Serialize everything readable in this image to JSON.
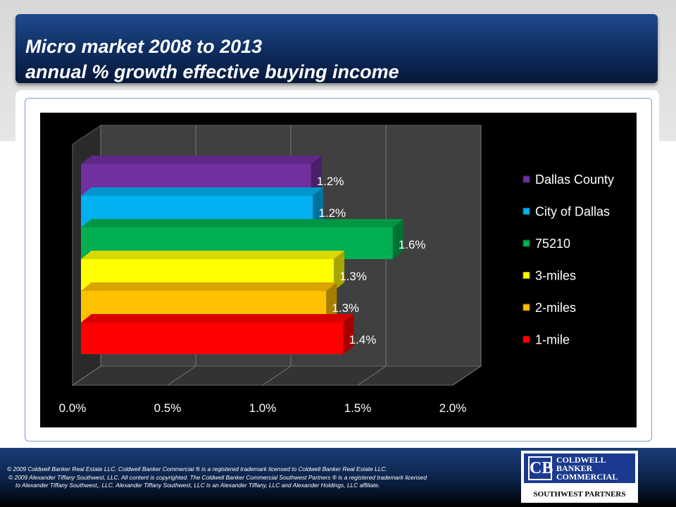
{
  "title": {
    "line1": "Micro market  2008 to 2013",
    "line2": "annual % growth effective buying income"
  },
  "chart_data": {
    "type": "bar",
    "orientation": "horizontal",
    "style": "3d",
    "categories": [
      "Dallas County",
      "City of Dallas",
      "75210",
      "3-miles",
      "2-miles",
      "1-mile"
    ],
    "values": [
      1.21,
      1.22,
      1.64,
      1.33,
      1.29,
      1.38
    ],
    "data_labels": [
      "1.2%",
      "1.2%",
      "1.6%",
      "1.3%",
      "1.3%",
      "1.4%"
    ],
    "colors": [
      "#7030a0",
      "#00b0f0",
      "#00b050",
      "#ffff00",
      "#ffc000",
      "#ff0000"
    ],
    "xticks": [
      "0.0%",
      "0.5%",
      "1.0%",
      "1.5%",
      "2.0%"
    ],
    "xlim": [
      0,
      2.0
    ],
    "grid": true,
    "legend": "right",
    "title": "",
    "xlabel": "",
    "ylabel": ""
  },
  "footer": {
    "line1": "©  2009 Coldwell Banker Real Estate  LLC. Coldwell Banker Commercial ® is a registered trademark licensed to Coldwell Banker Real Estate LLC.",
    "line2": "© 2009  Alexander Tiffany Southwest, LLC. All content is copyrighted. The Coldwell Banker Commercial Southwest Partners ® is a registered trademark licensed",
    "line3": "to Alexander Tiffany Southwest,, LLC.  Alexander Tiffany Southwest, LLC is an Alexander Tiffany, LLC and Alexander Holdings, LLC affiliate."
  },
  "logo": {
    "mark": "CB",
    "name": [
      "COLDWELL",
      "BANKER",
      "COMMERCIAL"
    ],
    "sub": "SOUTHWEST PARTNERS"
  }
}
